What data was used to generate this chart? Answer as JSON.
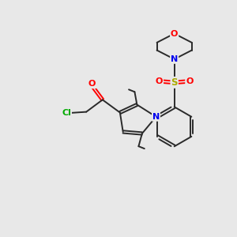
{
  "bg_color": "#e8e8e8",
  "bond_color": "#2a2a2a",
  "atom_colors": {
    "O": "#ff0000",
    "N": "#0000ee",
    "S": "#aaaa00",
    "Cl": "#00aa00",
    "C": "#2a2a2a"
  },
  "bond_width": 1.4,
  "figsize": [
    3.0,
    3.0
  ],
  "dpi": 100
}
